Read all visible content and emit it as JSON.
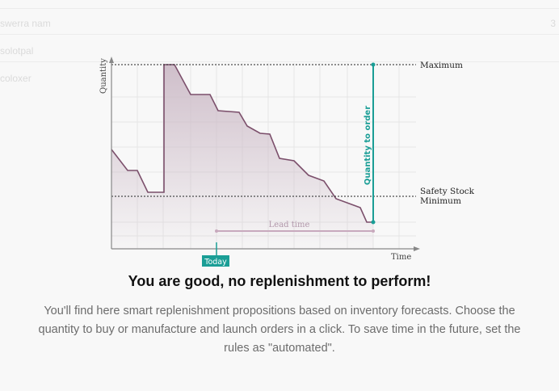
{
  "background": {
    "rows": [
      {
        "left": "swerra nam",
        "right": "3"
      },
      {
        "left": "solotpal",
        "right": ""
      },
      {
        "left": "coloxer",
        "right": ""
      }
    ]
  },
  "illustration": {
    "y_label": "Quantity",
    "x_label": "Time",
    "maximum_label": "Maximum",
    "safety_label_1": "Safety Stock",
    "safety_label_2": "Minimum",
    "qty_to_order_label": "Quantity to order",
    "lead_time_label": "Lead time",
    "today_label": "Today",
    "colors": {
      "teal": "#1a9e96",
      "line": "#7b4f6b",
      "fill": "#cdbcc8",
      "axis": "#888888"
    }
  },
  "empty_state": {
    "title": "You are good, no replenishment to perform!",
    "description": "You'll find here smart replenishment propositions based on inventory forecasts. Choose the quantity to buy or manufacture and launch orders in a click. To save time in the future, set the rules as \"automated\"."
  }
}
